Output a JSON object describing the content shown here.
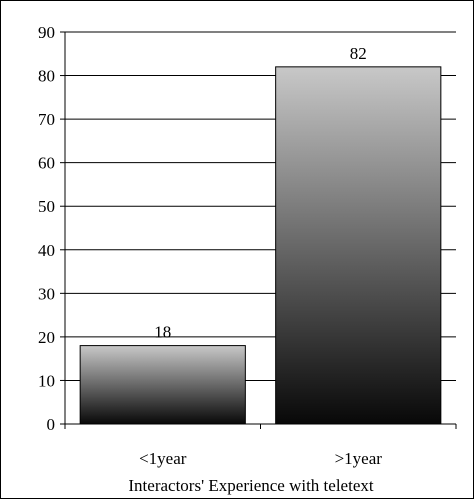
{
  "chart_data": {
    "type": "bar",
    "categories": [
      "<1year",
      ">1year"
    ],
    "values": [
      18,
      82
    ],
    "data_labels": [
      "18",
      "82"
    ],
    "title": "",
    "xlabel": "Interactors' Experience with teletext",
    "ylabel": "",
    "ylim": [
      0,
      90
    ],
    "yticks": [
      "0",
      "10",
      "20",
      "30",
      "40",
      "50",
      "60",
      "70",
      "80",
      "90"
    ],
    "grid": "horizontal",
    "bar_fill": "vertical gradient light gray top to black bottom",
    "colors": {
      "bar_top": "#c8c8c8",
      "bar_bottom": "#080808",
      "axis": "#000000",
      "grid": "#000000",
      "background": "#ffffff"
    }
  }
}
